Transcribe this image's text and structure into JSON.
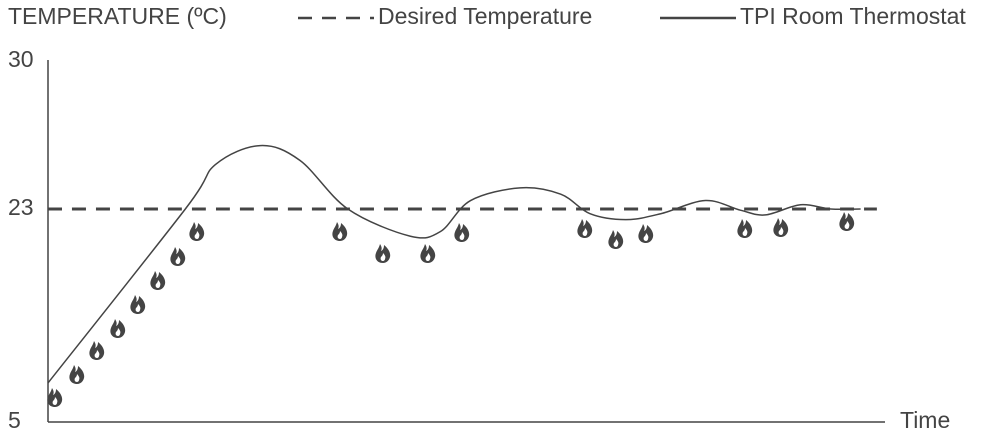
{
  "chart_data": {
    "type": "line",
    "y_label": "TEMPERATURE (ºC)",
    "x_label": "Time",
    "ylim": [
      5,
      30
    ],
    "yticks": [
      5,
      23,
      30
    ],
    "xlim": [
      0,
      103
    ],
    "series": [
      {
        "name": "Desired Temperature",
        "color": "#444444",
        "dashed": true,
        "x": [
          0,
          102
        ],
        "values": [
          23,
          23
        ]
      },
      {
        "name": "TPI Room Thermostat",
        "color": "#444444",
        "dashed": false,
        "x": [
          0,
          16.9,
          20.6,
          26.1,
          31.0,
          36.9,
          44.6,
          48.3,
          52.0,
          58.1,
          63.1,
          66.7,
          71.1,
          75.4,
          80.9,
          85.2,
          88.3,
          92.6,
          96.3,
          100
        ],
        "values": [
          8.3,
          23,
          25.1,
          26.0,
          25.3,
          23,
          20.7,
          21.1,
          23.4,
          24.0,
          23.7,
          22.6,
          22.1,
          22.6,
          23.4,
          22.9,
          22.5,
          23.2,
          23.0,
          23.0
        ]
      }
    ]
  }
}
